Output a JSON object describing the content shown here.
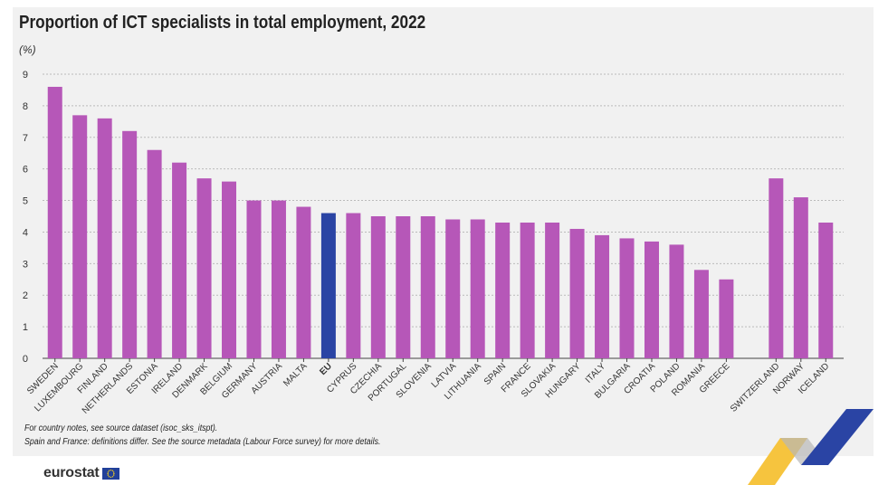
{
  "title": "Proportion of ICT specialists in total employment, 2022",
  "unit_label": "(%)",
  "notes": [
    "For country notes, see source dataset (isoc_sks_itspt).",
    "Spain and France: definitions differ. See the source metadata (Labour Force survey) for more details."
  ],
  "logo_text": "eurostat",
  "colors": {
    "bar": "#b657b8",
    "highlight": "#2a44a4",
    "panel": "#f1f1f1",
    "grid": "#bbbbbb"
  },
  "chart_data": {
    "type": "bar",
    "title": "Proportion of ICT specialists in total employment, 2022",
    "ylabel": "(%)",
    "xlabel": "",
    "ylim": [
      0,
      9
    ],
    "yticks": [
      0,
      1,
      2,
      3,
      4,
      5,
      6,
      7,
      8,
      9
    ],
    "grid": "horizontal dashed",
    "highlight_category": "EU",
    "categories": [
      "SWEDEN",
      "LUXEMBOURG",
      "FINLAND",
      "NETHERLANDS",
      "ESTONIA",
      "IRELAND",
      "DENMARK",
      "BELGIUM",
      "GERMANY",
      "AUSTRIA",
      "MALTA",
      "EU",
      "CYPRUS",
      "CZECHIA",
      "PORTUGAL",
      "SLOVENIA",
      "LATVIA",
      "LITHUANIA",
      "SPAIN",
      "FRANCE",
      "SLOVAKIA",
      "HUNGARY",
      "ITALY",
      "BULGARIA",
      "CROATIA",
      "POLAND",
      "ROMANIA",
      "GREECE",
      "",
      "SWITZERLAND",
      "NORWAY",
      "ICELAND"
    ],
    "values": [
      8.6,
      7.7,
      7.6,
      7.2,
      6.6,
      6.2,
      5.7,
      5.6,
      5.0,
      5.0,
      4.8,
      4.6,
      4.6,
      4.5,
      4.5,
      4.5,
      4.4,
      4.4,
      4.3,
      4.3,
      4.3,
      4.1,
      3.9,
      3.8,
      3.7,
      3.6,
      2.8,
      2.5,
      null,
      5.7,
      5.1,
      4.3
    ]
  }
}
